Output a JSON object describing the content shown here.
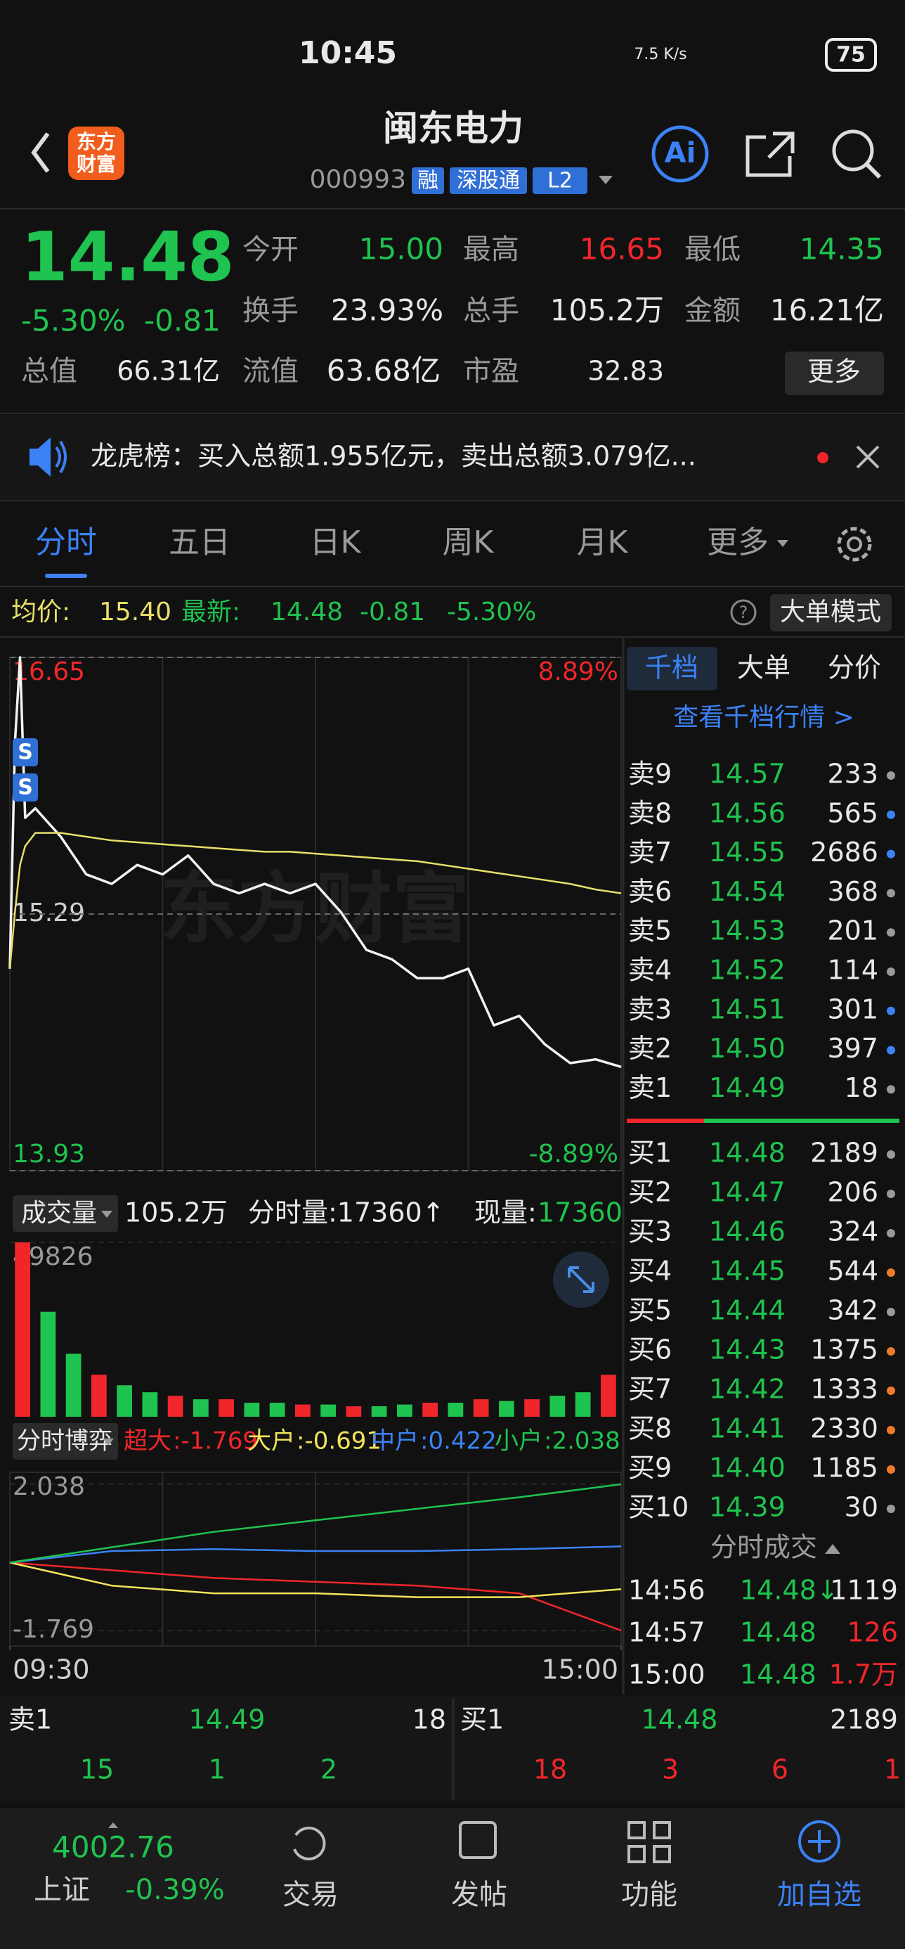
{
  "status": {
    "time": "10:45",
    "net": "7.5 K/s",
    "battery": "75"
  },
  "header": {
    "logo": [
      "东方",
      "财富"
    ],
    "title": "闽东电力",
    "code": "000993",
    "tags": [
      "融",
      "深股通",
      "L2"
    ],
    "ai": "Ai"
  },
  "quote": {
    "price": "14.48",
    "change_pct": "-5.30%",
    "change": "-0.81",
    "fields": [
      {
        "label": "今开",
        "value": "15.00"
      },
      {
        "label": "最高",
        "value": "16.65"
      },
      {
        "label": "最低",
        "value": "14.35"
      },
      {
        "label": "换手",
        "value": "23.93%"
      },
      {
        "label": "总手",
        "value": "105.2万"
      },
      {
        "label": "金额",
        "value": "16.21亿"
      },
      {
        "label": "总值",
        "value": "66.31亿"
      },
      {
        "label": "流值",
        "value": "63.68亿"
      },
      {
        "label": "市盈",
        "value": "32.83"
      }
    ],
    "more": "更多"
  },
  "notice": "龙虎榜：买入总额1.955亿元，卖出总额3.079亿...",
  "tabs": [
    "分时",
    "五日",
    "日K",
    "周K",
    "月K",
    "更多"
  ],
  "info": {
    "avg_label": "均价:",
    "avg": "15.40",
    "latest_label": "最新:",
    "latest": "14.48",
    "change": "-0.81",
    "change_pct": "-5.30%",
    "mode": "大单模式"
  },
  "watermark": "东方财富",
  "trade_marks": [
    "S",
    "S"
  ],
  "chart_data": [
    {
      "type": "line",
      "x": [
        0,
        2,
        4,
        6,
        10,
        20,
        30,
        40,
        50,
        60,
        70,
        80,
        90,
        100,
        110,
        120,
        130,
        140,
        150,
        160,
        170,
        180,
        190,
        200,
        210,
        220,
        230,
        240
      ],
      "xlim": [
        0,
        240
      ],
      "series": [
        {
          "color": "#f2f2f2",
          "values": [
            15.0,
            16.2,
            16.65,
            15.8,
            15.85,
            15.7,
            15.5,
            15.45,
            15.55,
            15.5,
            15.6,
            15.45,
            15.4,
            15.45,
            15.4,
            15.45,
            15.3,
            15.1,
            15.05,
            14.95,
            14.95,
            15.0,
            14.7,
            14.75,
            14.6,
            14.5,
            14.52,
            14.48
          ]
        },
        {
          "color": "#e8df6a",
          "values": [
            15.0,
            15.3,
            15.55,
            15.65,
            15.72,
            15.72,
            15.7,
            15.68,
            15.67,
            15.66,
            15.65,
            15.64,
            15.63,
            15.62,
            15.62,
            15.61,
            15.6,
            15.59,
            15.58,
            15.57,
            15.55,
            15.53,
            15.51,
            15.49,
            15.47,
            15.45,
            15.42,
            15.4
          ]
        }
      ],
      "ylim": [
        13.93,
        16.65
      ],
      "yticks": [
        16.65,
        15.29,
        13.93
      ],
      "y2lim": [
        -8.89,
        8.89
      ],
      "y2ticks": [
        {
          "value": 8.89,
          "label": "8.89%"
        },
        {
          "value": -8.89,
          "label": "-8.89%"
        }
      ]
    },
    {
      "type": "bar",
      "x": [
        5,
        15,
        25,
        35,
        45,
        55,
        65,
        75,
        85,
        95,
        105,
        115,
        125,
        135,
        145,
        155,
        165,
        175,
        185,
        195,
        205,
        215,
        225,
        235
      ],
      "xlim": [
        0,
        240
      ],
      "values": [
        49826,
        30000,
        18000,
        12000,
        9000,
        7000,
        6000,
        5000,
        5000,
        4000,
        4000,
        3500,
        3500,
        3000,
        3000,
        3500,
        4000,
        4000,
        5000,
        4500,
        5000,
        6000,
        7000,
        12000
      ],
      "colors": [
        "#f0262b",
        "#1fc34f",
        "#1fc34f",
        "#f0262b",
        "#1fc34f",
        "#1fc34f",
        "#f0262b",
        "#1fc34f",
        "#f0262b",
        "#1fc34f",
        "#1fc34f",
        "#f0262b",
        "#1fc34f",
        "#f0262b",
        "#1fc34f",
        "#1fc34f",
        "#f0262b",
        "#1fc34f",
        "#f0262b",
        "#1fc34f",
        "#f0262b",
        "#1fc34f",
        "#1fc34f",
        "#f0262b"
      ],
      "ylim": [
        0,
        49826
      ],
      "yticks": [
        49826
      ]
    },
    {
      "type": "line",
      "x": [
        0,
        40,
        80,
        120,
        160,
        200,
        240
      ],
      "xlim": [
        0,
        240
      ],
      "series": [
        {
          "name": "超大",
          "color": "#f0262b",
          "values": [
            0,
            -0.2,
            -0.4,
            -0.5,
            -0.6,
            -0.8,
            -1.769
          ]
        },
        {
          "name": "大户",
          "color": "#f2e55c",
          "values": [
            0,
            -0.6,
            -0.8,
            -0.8,
            -0.9,
            -0.9,
            -0.691
          ]
        },
        {
          "name": "中户",
          "color": "#3b82f6",
          "values": [
            0,
            0.3,
            0.35,
            0.3,
            0.3,
            0.35,
            0.422
          ]
        },
        {
          "name": "小户",
          "color": "#1fc34f",
          "values": [
            0,
            0.4,
            0.8,
            1.1,
            1.4,
            1.7,
            2.038
          ]
        }
      ],
      "legend_values": [
        ":-1.769",
        ":-0.691",
        ":0.422",
        ":2.038"
      ],
      "ylim": [
        -2.17,
        2.35
      ],
      "yticks": [
        2.038,
        -1.769
      ],
      "xticks": [
        {
          "value": 0,
          "label": "09:30"
        },
        {
          "value": 240,
          "label": "15:00"
        }
      ]
    }
  ],
  "volume_bar": {
    "label": "成交量",
    "total": "105.2万",
    "tick_label": "分时量:17360↑",
    "now_label": "现量:",
    "now": "17360"
  },
  "flow_bar": {
    "label": "分时博弈"
  },
  "book": {
    "tabs": [
      "千档",
      "大单",
      "分价"
    ],
    "link": "查看千档行情 >",
    "asks": [
      {
        "label": "卖9",
        "price": "14.57",
        "volume": "233",
        "dot": "#9a9a9a"
      },
      {
        "label": "卖8",
        "price": "14.56",
        "volume": "565",
        "dot": "#3b82f6"
      },
      {
        "label": "卖7",
        "price": "14.55",
        "volume": "2686",
        "dot": "#3b82f6"
      },
      {
        "label": "卖6",
        "price": "14.54",
        "volume": "368",
        "dot": "#9a9a9a"
      },
      {
        "label": "卖5",
        "price": "14.53",
        "volume": "201",
        "dot": "#9a9a9a"
      },
      {
        "label": "卖4",
        "price": "14.52",
        "volume": "114",
        "dot": "#9a9a9a"
      },
      {
        "label": "卖3",
        "price": "14.51",
        "volume": "301",
        "dot": "#3b82f6"
      },
      {
        "label": "卖2",
        "price": "14.50",
        "volume": "397",
        "dot": "#3b82f6"
      },
      {
        "label": "卖1",
        "price": "14.49",
        "volume": "18",
        "dot": "#9a9a9a"
      }
    ],
    "bids": [
      {
        "label": "买1",
        "price": "14.48",
        "volume": "2189",
        "dot": "#9a9a9a"
      },
      {
        "label": "买2",
        "price": "14.47",
        "volume": "206",
        "dot": "#9a9a9a"
      },
      {
        "label": "买3",
        "price": "14.46",
        "volume": "324",
        "dot": "#9a9a9a"
      },
      {
        "label": "买4",
        "price": "14.45",
        "volume": "544",
        "dot": "#f07a2b"
      },
      {
        "label": "买5",
        "price": "14.44",
        "volume": "342",
        "dot": "#9a9a9a"
      },
      {
        "label": "买6",
        "price": "14.43",
        "volume": "1375",
        "dot": "#f07a2b"
      },
      {
        "label": "买7",
        "price": "14.42",
        "volume": "1333",
        "dot": "#f07a2b"
      },
      {
        "label": "买8",
        "price": "14.41",
        "volume": "2330",
        "dot": "#f07a2b"
      },
      {
        "label": "买9",
        "price": "14.40",
        "volume": "1185",
        "dot": "#f07a2b"
      },
      {
        "label": "买10",
        "price": "14.39",
        "volume": "30",
        "dot": "#9a9a9a"
      }
    ],
    "trades_title": "分时成交",
    "trades": [
      {
        "time": "14:56",
        "price": "14.48↓",
        "volume": "1119",
        "color": "#e8e8e8"
      },
      {
        "time": "14:57",
        "price": "14.48",
        "volume": "126",
        "color": "#f0262b"
      },
      {
        "time": "15:00",
        "price": "14.48",
        "volume": "1.7万",
        "color": "#f0262b"
      }
    ]
  },
  "summary": {
    "ask": {
      "label": "卖1",
      "price": "14.49",
      "volume": "18"
    },
    "bid": {
      "label": "买1",
      "price": "14.48",
      "volume": "2189"
    },
    "ask_counts": [
      "15",
      "1",
      "2"
    ],
    "bid_counts": [
      "18",
      "3",
      "6",
      "1"
    ]
  },
  "nav": {
    "index": "4002.76",
    "index_name": "上证",
    "index_change": "-0.39%",
    "items": [
      "交易",
      "发帖",
      "功能",
      "加自选"
    ]
  }
}
